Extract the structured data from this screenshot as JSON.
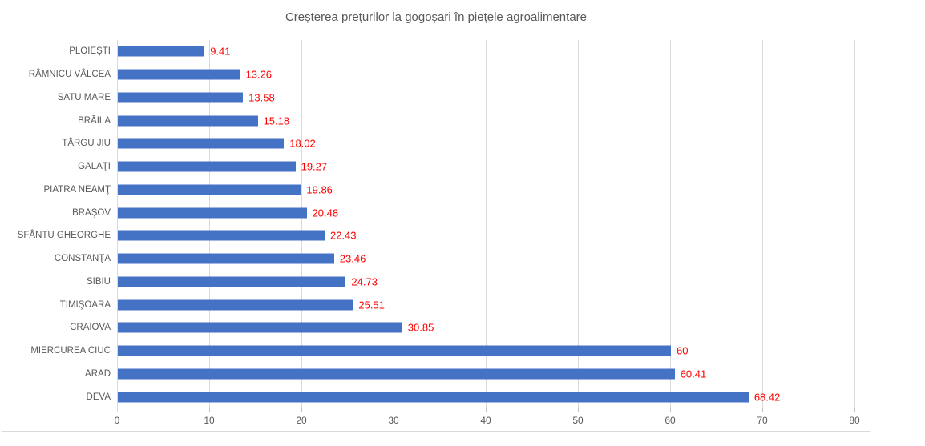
{
  "chart_data": {
    "type": "bar",
    "orientation": "horizontal",
    "title": "Creșterea prețurilor la gogoșari în piețele agroalimentare",
    "categories": [
      "PLOIEŞTI",
      "RÂMNICU VÂLCEA",
      "SATU MARE",
      "BRĂILA",
      "TÂRGU JIU",
      "GALAŢI",
      "PIATRA NEAMŢ",
      "BRAŞOV",
      "SFÂNTU GHEORGHE",
      "CONSTANŢA",
      "SIBIU",
      "TIMIŞOARA",
      "CRAIOVA",
      "MIERCUREA CIUC",
      "ARAD",
      "DEVA"
    ],
    "values": [
      9.41,
      13.26,
      13.58,
      15.18,
      18.02,
      19.27,
      19.86,
      20.48,
      22.43,
      23.46,
      24.73,
      25.51,
      30.85,
      60,
      60.41,
      68.42
    ],
    "value_labels": [
      "9.41",
      "13.26",
      "13.58",
      "15.18",
      "18.02",
      "19.27",
      "19.86",
      "20.48",
      "22.43",
      "23.46",
      "24.73",
      "25.51",
      "30.85",
      "60",
      "60.41",
      "68.42"
    ],
    "xlabel": "",
    "ylabel": "",
    "xlim": [
      0,
      80
    ],
    "x_ticks": [
      "0",
      "10",
      "20",
      "30",
      "40",
      "50",
      "60",
      "70",
      "80"
    ],
    "grid": true,
    "legend": false,
    "colors": {
      "bar": "#4472c4",
      "value_label": "#ff0000",
      "axis_text": "#595959",
      "title_text": "#595959",
      "gridline": "#d9d9d9",
      "border": "#d9d9d9",
      "background": "#ffffff"
    }
  }
}
